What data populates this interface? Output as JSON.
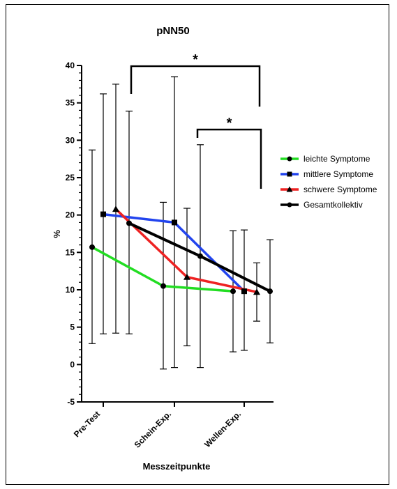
{
  "chart_data": {
    "type": "line",
    "title": "pNN50",
    "xlabel": "Messzeitpunkte",
    "ylabel": "%",
    "categories": [
      "Pre-Test",
      "Schein-Exp.",
      "Wellen-Exp."
    ],
    "ylim": [
      -5,
      40
    ],
    "yticks": [
      -5,
      0,
      5,
      10,
      15,
      20,
      25,
      30,
      35,
      40
    ],
    "legend_position": "right",
    "series": [
      {
        "name": "leichte Symptome",
        "color": "#22dd22",
        "marker": "circle",
        "values": [
          15.7,
          10.5,
          9.8
        ],
        "err_low": [
          2.8,
          -0.6,
          1.7
        ],
        "err_high": [
          28.7,
          21.7,
          17.9
        ]
      },
      {
        "name": "mittlere Symptome",
        "color": "#2244ee",
        "marker": "square",
        "values": [
          20.1,
          19.0,
          9.8
        ],
        "err_low": [
          4.1,
          -0.4,
          1.9
        ],
        "err_high": [
          36.2,
          38.5,
          18.0
        ]
      },
      {
        "name": "schwere Symptome",
        "color": "#ee2222",
        "marker": "triangle",
        "values": [
          20.8,
          11.7,
          9.7
        ],
        "err_low": [
          4.2,
          2.5,
          5.8
        ],
        "err_high": [
          37.5,
          20.9,
          13.6
        ]
      },
      {
        "name": "Gesamtkollektiv",
        "color": "#000000",
        "marker": "circle",
        "values": [
          18.9,
          14.5,
          9.8
        ],
        "err_low": [
          4.1,
          -0.4,
          2.9
        ],
        "err_high": [
          33.9,
          29.4,
          16.7
        ]
      }
    ],
    "annotations": [
      {
        "label": "*",
        "from": "Pre-Test",
        "to": "Wellen-Exp."
      },
      {
        "label": "*",
        "from": "Schein-Exp.",
        "to": "Wellen-Exp."
      }
    ]
  }
}
